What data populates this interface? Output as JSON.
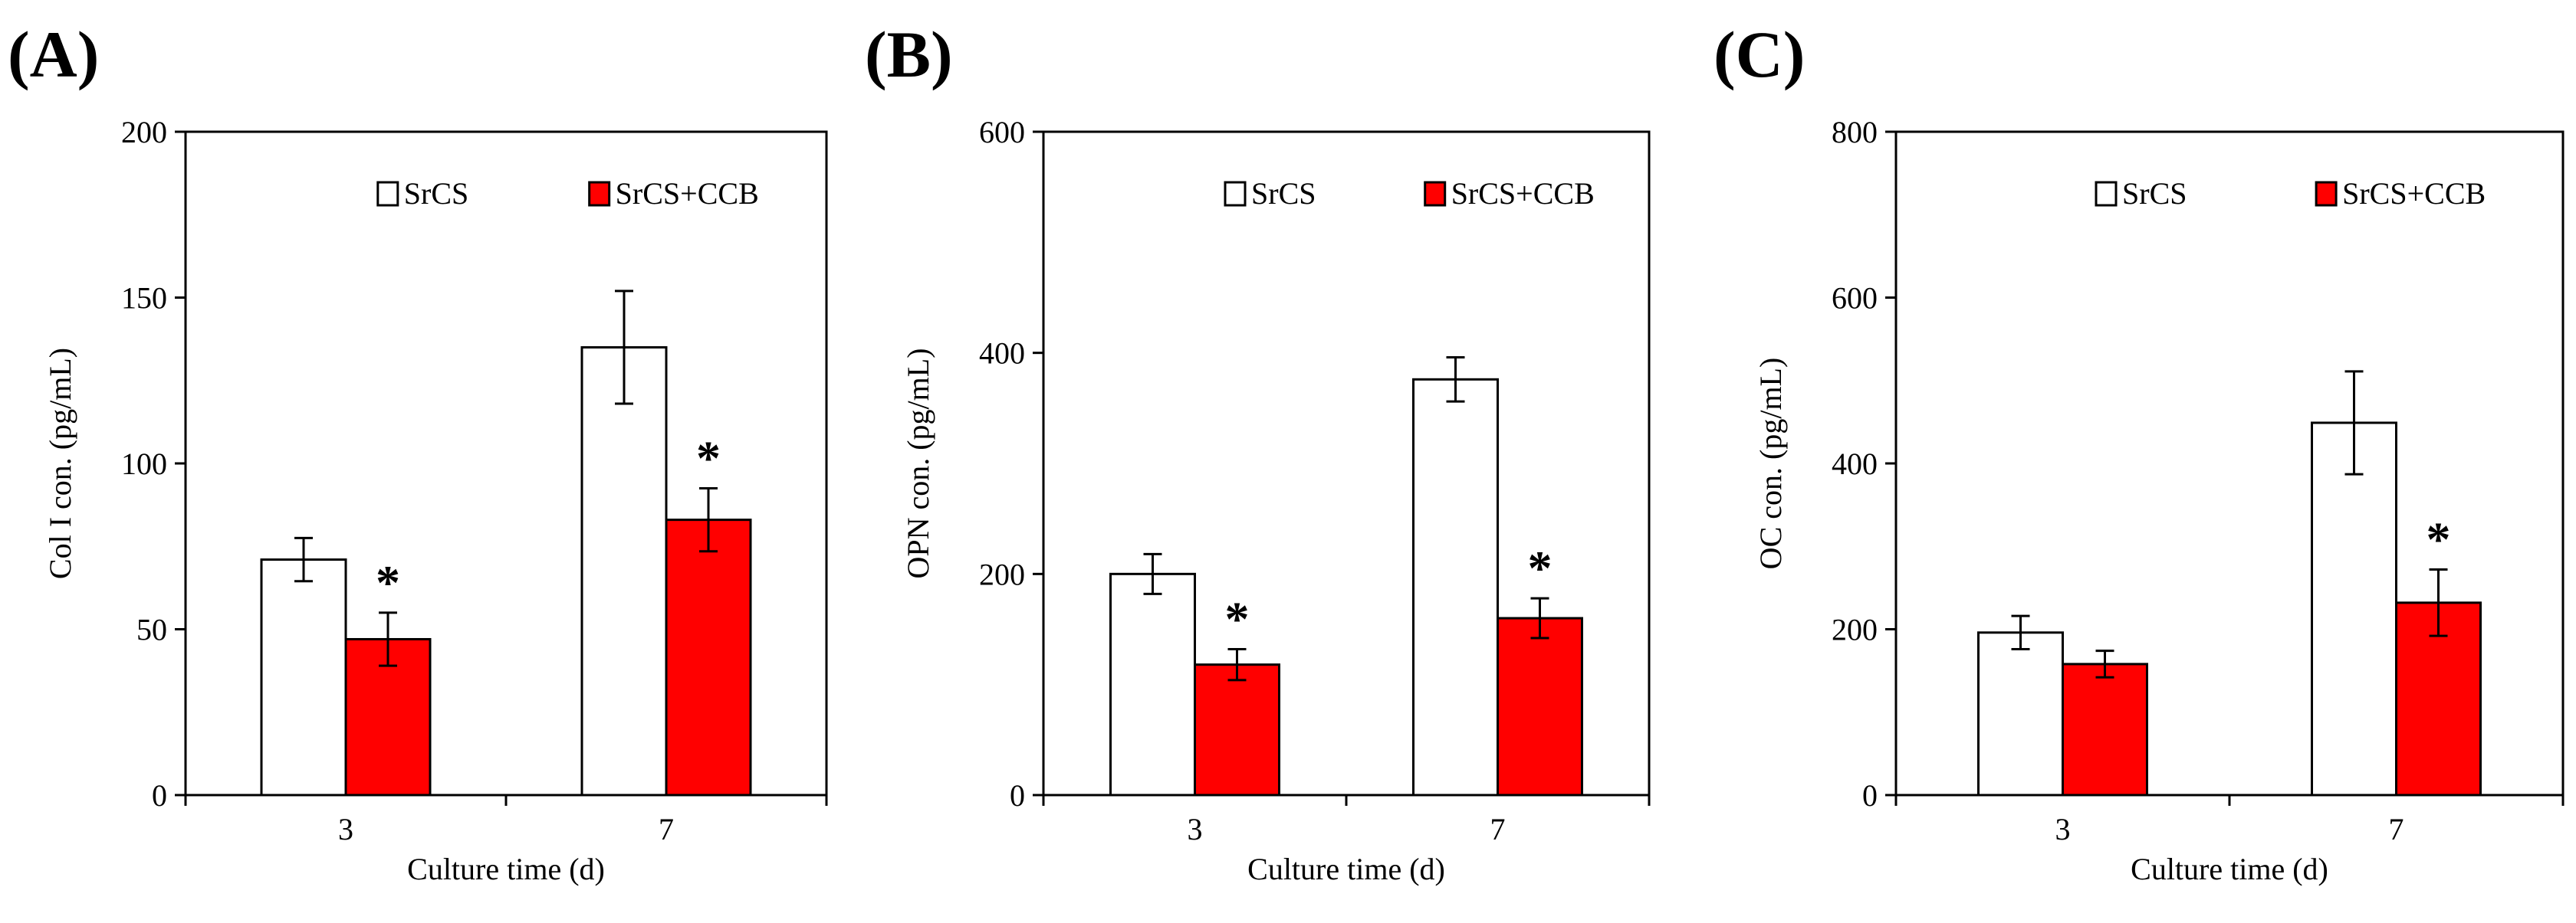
{
  "chart_data": [
    {
      "type": "bar",
      "panel_label": "(A)",
      "categories": [
        "3",
        "7"
      ],
      "xlabel": "Culture time (d)",
      "ylabel": "Col I con. (pg/mL)",
      "ylim": [
        0,
        200
      ],
      "yticks": [
        0,
        50,
        100,
        150,
        200
      ],
      "legend": "top",
      "grid": false,
      "series": [
        {
          "name": "SrCS",
          "values": [
            71,
            135
          ],
          "errors": [
            6.5,
            17
          ],
          "color": "#ffffff",
          "stars": [
            "",
            ""
          ]
        },
        {
          "name": "SrCS+CCB",
          "values": [
            47,
            83
          ],
          "errors": [
            8,
            9.5
          ],
          "color": "#ff0000",
          "stars": [
            "*",
            "*"
          ]
        }
      ]
    },
    {
      "type": "bar",
      "panel_label": "(B)",
      "categories": [
        "3",
        "7"
      ],
      "xlabel": "Culture time (d)",
      "ylabel": "OPN con. (pg/mL)",
      "ylim": [
        0,
        600
      ],
      "yticks": [
        0,
        200,
        400,
        600
      ],
      "legend": "top",
      "grid": false,
      "series": [
        {
          "name": "SrCS",
          "values": [
            200,
            376
          ],
          "errors": [
            18,
            20
          ],
          "color": "#ffffff",
          "stars": [
            "",
            ""
          ]
        },
        {
          "name": "SrCS+CCB",
          "values": [
            118,
            160
          ],
          "errors": [
            14,
            18
          ],
          "color": "#ff0000",
          "stars": [
            "*",
            "*"
          ]
        }
      ]
    },
    {
      "type": "bar",
      "panel_label": "(C)",
      "categories": [
        "3",
        "7"
      ],
      "xlabel": "Culture time (d)",
      "ylabel": "OC con. (pg/mL)",
      "ylim": [
        0,
        800
      ],
      "yticks": [
        0,
        200,
        400,
        600,
        800
      ],
      "legend": "top",
      "grid": false,
      "series": [
        {
          "name": "SrCS",
          "values": [
            196,
            449
          ],
          "errors": [
            20,
            62
          ],
          "color": "#ffffff",
          "stars": [
            "",
            ""
          ]
        },
        {
          "name": "SrCS+CCB",
          "values": [
            158,
            232
          ],
          "errors": [
            16,
            40
          ],
          "color": "#ff0000",
          "stars": [
            "",
            "*"
          ]
        }
      ]
    }
  ]
}
